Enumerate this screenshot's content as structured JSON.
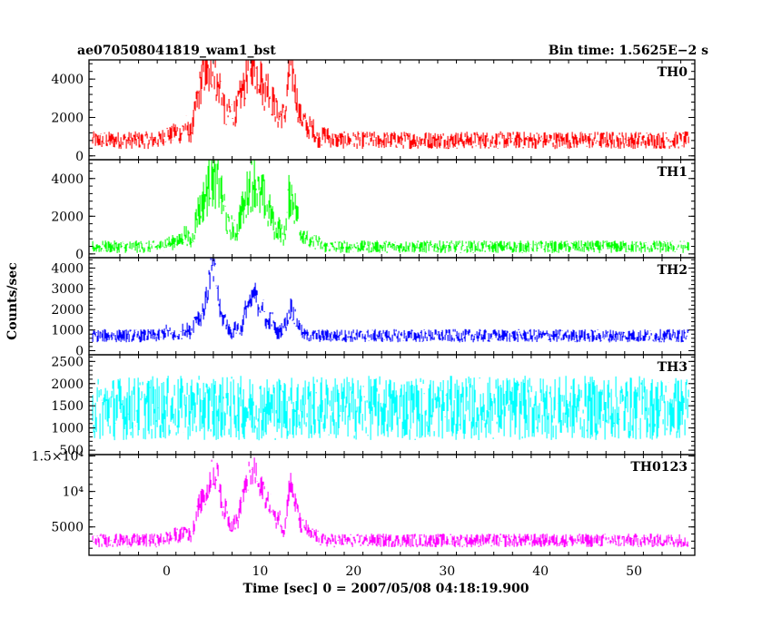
{
  "chart_data": {
    "type": "line",
    "title_left": "ae070508041819_wam1_bst",
    "title_right": "Bin time: 1.5625E−2 s",
    "xlabel": "Time [sec] 0 = 2007/05/08 04:18:19.900",
    "ylabel": "Counts/sec",
    "xlim": [
      -8.3,
      56.5
    ],
    "data_range": [
      -7.9,
      55.9
    ],
    "x_ticks": [
      0,
      10,
      20,
      30,
      40,
      50
    ],
    "panels": [
      {
        "name": "TH0",
        "color": "#ff0000",
        "ylim": [
          -200,
          5000
        ],
        "y_ticks": [
          0,
          2000,
          4000
        ],
        "y_tick_labels": [
          "0",
          "2000",
          "4000"
        ],
        "baseline": 820,
        "noise": 330,
        "peaks": [
          [
            0,
            350
          ],
          [
            1,
            450
          ],
          [
            2,
            750
          ],
          [
            3.2,
            1500
          ],
          [
            3.8,
            2300
          ],
          [
            4.3,
            2400
          ],
          [
            5,
            3700
          ],
          [
            5.8,
            2600
          ],
          [
            6.7,
            1200
          ],
          [
            7.3,
            1100
          ],
          [
            8,
            2100
          ],
          [
            8.7,
            3000
          ],
          [
            9.3,
            3300
          ],
          [
            10,
            3000
          ],
          [
            10.8,
            2600
          ],
          [
            11.5,
            1600
          ],
          [
            12.3,
            1200
          ],
          [
            13.2,
            3300
          ],
          [
            13.8,
            2000
          ],
          [
            14.6,
            1000
          ],
          [
            15.5,
            700
          ],
          [
            17,
            300
          ]
        ]
      },
      {
        "name": "TH1",
        "color": "#00ff00",
        "ylim": [
          -200,
          5000
        ],
        "y_ticks": [
          0,
          2000,
          4000
        ],
        "y_tick_labels": [
          "0",
          "2000",
          "4000"
        ],
        "baseline": 380,
        "noise": 240,
        "peaks": [
          [
            0,
            250
          ],
          [
            1,
            350
          ],
          [
            2,
            700
          ],
          [
            3.3,
            1600
          ],
          [
            4,
            2100
          ],
          [
            4.7,
            3300
          ],
          [
            5.4,
            3100
          ],
          [
            6.1,
            2000
          ],
          [
            7,
            1000
          ],
          [
            8,
            1800
          ],
          [
            8.8,
            2900
          ],
          [
            9.5,
            3200
          ],
          [
            10.3,
            2500
          ],
          [
            11.1,
            1700
          ],
          [
            12,
            1000
          ],
          [
            13.2,
            2700
          ],
          [
            13.9,
            1600
          ],
          [
            14.8,
            700
          ],
          [
            16,
            300
          ]
        ]
      },
      {
        "name": "TH2",
        "color": "#0000ff",
        "ylim": [
          -200,
          4500
        ],
        "y_ticks": [
          0,
          1000,
          2000,
          3000,
          4000
        ],
        "y_tick_labels": [
          "0",
          "1000",
          "2000",
          "3000",
          "4000"
        ],
        "baseline": 720,
        "noise": 230,
        "peaks": [
          [
            0,
            200
          ],
          [
            2,
            350
          ],
          [
            3.2,
            900
          ],
          [
            4,
            1100
          ],
          [
            4.7,
            2600
          ],
          [
            5.3,
            2200
          ],
          [
            6.2,
            800
          ],
          [
            7.5,
            400
          ],
          [
            8.6,
            1400
          ],
          [
            9.4,
            1900
          ],
          [
            10.2,
            1400
          ],
          [
            11.2,
            800
          ],
          [
            12.5,
            400
          ],
          [
            13.3,
            1300
          ],
          [
            14,
            500
          ]
        ]
      },
      {
        "name": "TH3",
        "color": "#00ffff",
        "ylim": [
          400,
          2650
        ],
        "y_ticks": [
          500,
          1000,
          1500,
          2000,
          2500
        ],
        "y_tick_labels": [
          "500",
          "1000",
          "1500",
          "2000",
          "2500"
        ],
        "baseline": 1450,
        "noise": 520,
        "peaks": []
      },
      {
        "name": "TH0123",
        "color": "#ff00ff",
        "ylim": [
          1000,
          15200
        ],
        "y_ticks": [
          5000,
          10000,
          15000
        ],
        "y_tick_labels": [
          "5000",
          "10⁴",
          "1.5×10⁴"
        ],
        "baseline": 3100,
        "noise": 700,
        "peaks": [
          [
            0,
            400
          ],
          [
            1,
            800
          ],
          [
            2,
            1500
          ],
          [
            3.3,
            4200
          ],
          [
            4,
            5500
          ],
          [
            4.8,
            8800
          ],
          [
            5.5,
            7800
          ],
          [
            6.3,
            4000
          ],
          [
            7.2,
            2500
          ],
          [
            8.1,
            5500
          ],
          [
            8.8,
            7800
          ],
          [
            9.5,
            8500
          ],
          [
            10.3,
            7000
          ],
          [
            11.1,
            5000
          ],
          [
            12,
            3300
          ],
          [
            13.2,
            7500
          ],
          [
            13.9,
            4000
          ],
          [
            14.8,
            1900
          ],
          [
            15.8,
            800
          ]
        ]
      }
    ]
  }
}
